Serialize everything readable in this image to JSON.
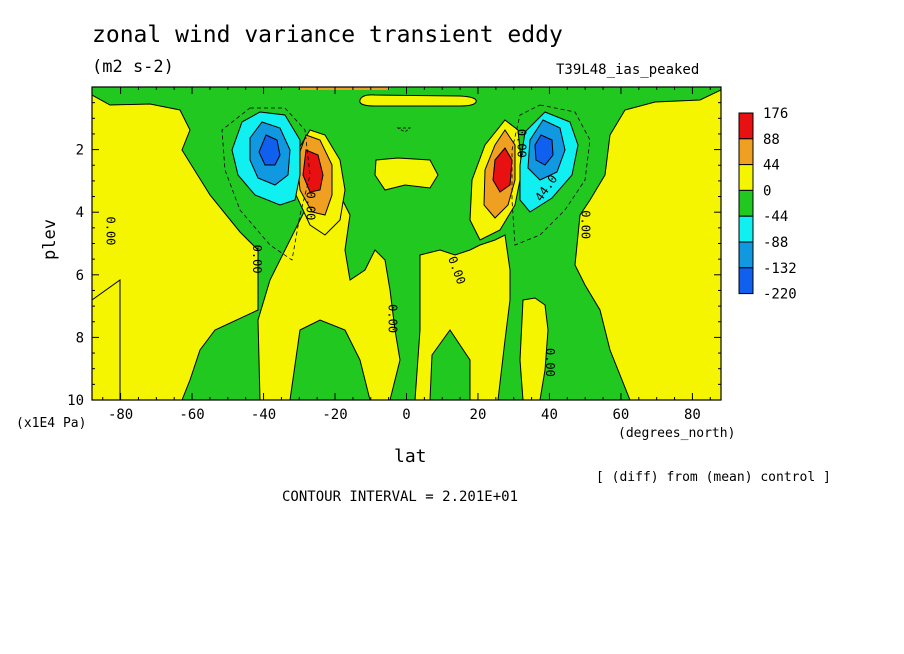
{
  "header": {
    "title": "zonal wind variance transient eddy",
    "units": "(m2 s-2)",
    "run_label": "T39L48_ias_peaked"
  },
  "footer": {
    "diff_note": "[ (diff) from (mean) control ]",
    "contour_interval": "CONTOUR INTERVAL = 2.201E+01"
  },
  "chart_data": {
    "type": "heatmap",
    "title": "zonal wind variance transient eddy",
    "subtitle": "(m2 s-2)",
    "xlabel": "lat",
    "xunits": "(degrees_north)",
    "ylabel": "plev",
    "yunits": "(x1E4 Pa)",
    "xlim": [
      -88,
      88
    ],
    "ylim": [
      10,
      0
    ],
    "x_ticks": [
      -80,
      -60,
      -40,
      -20,
      0,
      20,
      40,
      60,
      80
    ],
    "y_ticks": [
      2,
      4,
      6,
      8,
      10
    ],
    "levels": [
      {
        "label": "176",
        "color": "#e81010"
      },
      {
        "label": "88",
        "color": "#f0a020"
      },
      {
        "label": "44",
        "color": "#f5f500"
      },
      {
        "label": "0",
        "color": "#20c820"
      },
      {
        "label": "-44",
        "color": "#10f0f0"
      },
      {
        "label": "-88",
        "color": "#1098e0"
      },
      {
        "label": "-132",
        "color": "#1060f0"
      },
      {
        "label": "-220",
        "color": null
      }
    ],
    "contour_labels": [
      {
        "text": "0.00",
        "x": -84,
        "y": 4.6,
        "rot": 90
      },
      {
        "text": "0.00",
        "x": -43,
        "y": 5.5,
        "rot": 90
      },
      {
        "text": "0.00",
        "x": -5,
        "y": 7.4,
        "rot": 90
      },
      {
        "text": "0.00",
        "x": 13,
        "y": 5.9,
        "rot": 70
      },
      {
        "text": "0.00",
        "x": 39,
        "y": 8.8,
        "rot": 90
      },
      {
        "text": "0.00",
        "x": 49,
        "y": 4.4,
        "rot": 90
      },
      {
        "text": "0.00",
        "x": -28,
        "y": 3.8,
        "rot": 90
      },
      {
        "text": "44.0",
        "x": 40,
        "y": 3.3,
        "rot": -55
      },
      {
        "text": "0.00",
        "x": 31,
        "y": 1.8,
        "rot": 90
      }
    ],
    "grid": false
  }
}
